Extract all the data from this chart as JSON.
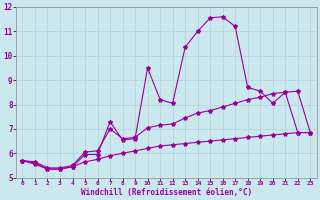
{
  "x": [
    0,
    1,
    2,
    3,
    4,
    5,
    6,
    7,
    8,
    9,
    10,
    11,
    12,
    13,
    14,
    15,
    16,
    17,
    18,
    19,
    20,
    21,
    22,
    23
  ],
  "line1": [
    5.7,
    5.6,
    5.35,
    5.35,
    5.45,
    5.95,
    5.95,
    7.3,
    6.55,
    6.6,
    9.5,
    8.2,
    8.05,
    10.35,
    11.0,
    11.55,
    11.6,
    11.2,
    8.7,
    8.55,
    8.05,
    8.5,
    6.85,
    6.85
  ],
  "line2": [
    5.7,
    5.65,
    5.4,
    5.4,
    5.5,
    6.05,
    6.1,
    7.0,
    6.6,
    6.65,
    7.05,
    7.15,
    7.2,
    7.45,
    7.65,
    7.75,
    7.9,
    8.05,
    8.2,
    8.3,
    8.45,
    8.5,
    8.55,
    6.85
  ],
  "line3": [
    5.7,
    5.55,
    5.35,
    5.35,
    5.45,
    5.65,
    5.75,
    5.9,
    6.0,
    6.1,
    6.2,
    6.3,
    6.35,
    6.4,
    6.45,
    6.5,
    6.55,
    6.6,
    6.65,
    6.7,
    6.75,
    6.8,
    6.85,
    6.85
  ],
  "line_color": "#990099",
  "bg_color": "#cce8ef",
  "grid_color": "#b0d0d8",
  "xlabel": "Windchill (Refroidissement éolien,°C)",
  "xlim": [
    -0.5,
    23.5
  ],
  "ylim": [
    5,
    12
  ],
  "yticks": [
    5,
    6,
    7,
    8,
    9,
    10,
    11,
    12
  ],
  "xticks": [
    0,
    1,
    2,
    3,
    4,
    5,
    6,
    7,
    8,
    9,
    10,
    11,
    12,
    13,
    14,
    15,
    16,
    17,
    18,
    19,
    20,
    21,
    22,
    23
  ],
  "xlabel_fontsize": 5.5,
  "tick_fontsize_x": 4.5,
  "tick_fontsize_y": 5.5,
  "marker_size": 3.0,
  "line_width": 0.8
}
